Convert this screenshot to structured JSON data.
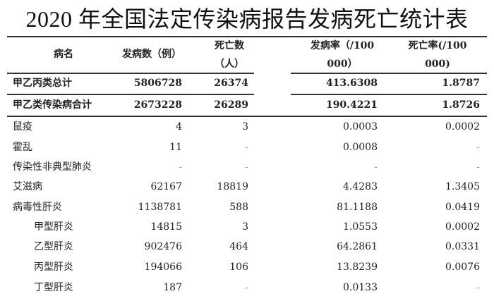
{
  "title": "2020 年全国法定传染病报告发病死亡统计表",
  "headers": {
    "name": "病名",
    "cases": "发病数（例）",
    "deaths_line1": "死亡数",
    "deaths_line2": "（人）",
    "incidence_line1": "发病率（/100",
    "incidence_line2": "000）",
    "mortality_line1": "死亡率(/100",
    "mortality_line2": "000)"
  },
  "rows": [
    {
      "name": "甲乙丙类总计",
      "cases": "5806728",
      "deaths": "26374",
      "incidence": "413.6308",
      "mortality": "1.8787",
      "bold": true
    },
    {
      "name": "甲乙类传染病合计",
      "cases": "2673228",
      "deaths": "26289",
      "incidence": "190.4221",
      "mortality": "1.8726",
      "bold": true
    },
    {
      "name": "鼠疫",
      "cases": "4",
      "deaths": "3",
      "incidence": "0.0003",
      "mortality": "0.0002"
    },
    {
      "name": "霍乱",
      "cases": "11",
      "deaths": "-",
      "incidence": "0.0008",
      "mortality": "-"
    },
    {
      "name": "传染性非典型肺炎",
      "cases": "-",
      "deaths": "-",
      "incidence": "-",
      "mortality": "-"
    },
    {
      "name": "艾滋病",
      "cases": "62167",
      "deaths": "18819",
      "incidence": "4.4283",
      "mortality": "1.3405"
    },
    {
      "name": "病毒性肝炎",
      "cases": "1138781",
      "deaths": "588",
      "incidence": "81.1188",
      "mortality": "0.0419"
    },
    {
      "name": "甲型肝炎",
      "cases": "14815",
      "deaths": "3",
      "incidence": "1.0553",
      "mortality": "0.0002",
      "sub": true
    },
    {
      "name": "乙型肝炎",
      "cases": "902476",
      "deaths": "464",
      "incidence": "64.2861",
      "mortality": "0.0331",
      "sub": true
    },
    {
      "name": "丙型肝炎",
      "cases": "194066",
      "deaths": "106",
      "incidence": "13.8239",
      "mortality": "0.0076",
      "sub": true
    },
    {
      "name": "丁型肝炎",
      "cases": "187",
      "deaths": "-",
      "incidence": "0.0133",
      "mortality": "-",
      "sub": true
    }
  ]
}
